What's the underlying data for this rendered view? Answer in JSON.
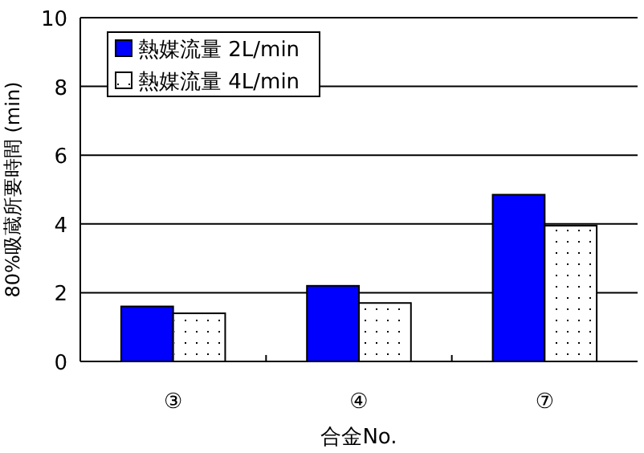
{
  "chart_data": {
    "type": "bar",
    "xlabel": "合金No.",
    "ylabel": "80%吸蔵所要時間 (min)",
    "categories": [
      "③",
      "④",
      "⑦"
    ],
    "series": [
      {
        "name": "熱媒流量 2L/min",
        "color": "#0000ff",
        "values": [
          1.6,
          2.2,
          4.85
        ]
      },
      {
        "name": "熱媒流量 4L/min",
        "color": "#ffffff",
        "values": [
          1.4,
          1.7,
          3.95
        ]
      }
    ],
    "ylim": [
      0,
      10
    ],
    "yticks": [
      0,
      2,
      4,
      6,
      8,
      10
    ],
    "grid": "y",
    "legend": "top left"
  }
}
